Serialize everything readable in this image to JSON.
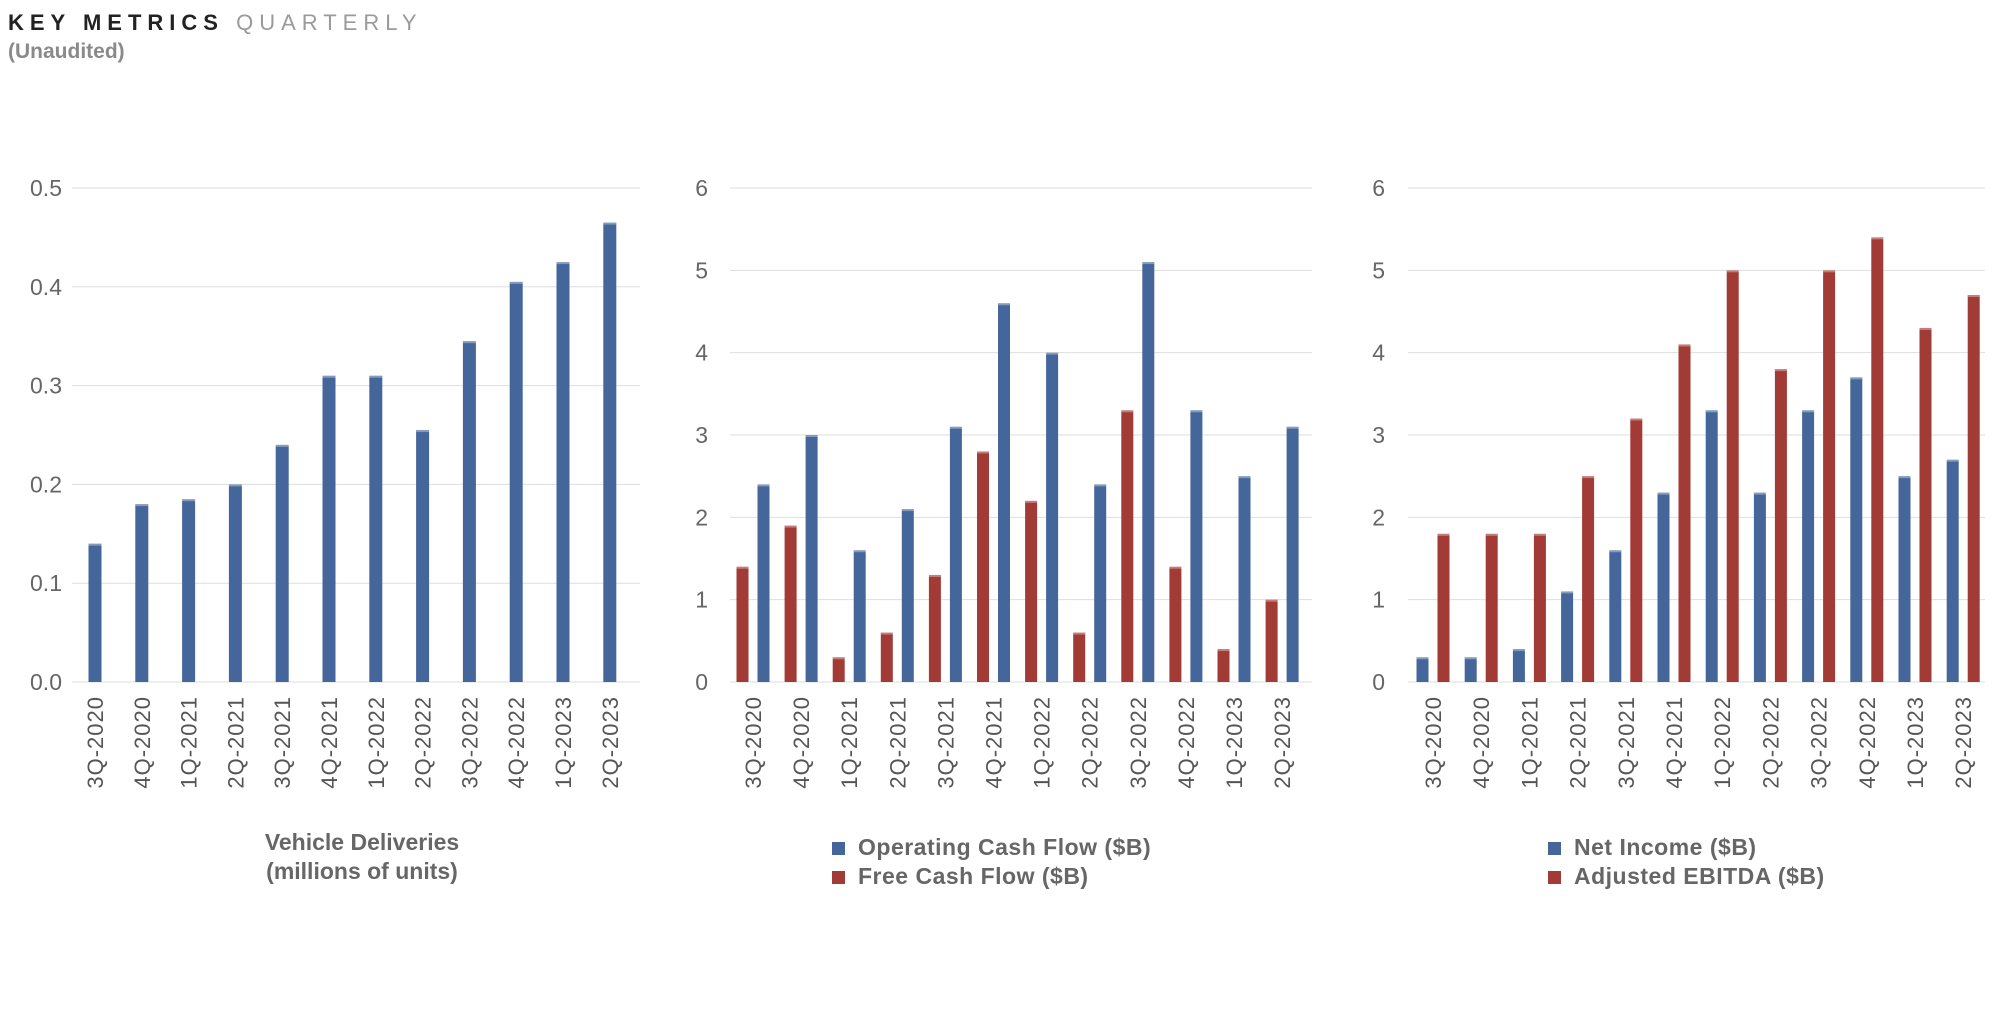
{
  "header": {
    "title_strong": "KEY METRICS",
    "title_light": "QUARTERLY",
    "subtitle": "(Unaudited)"
  },
  "colors": {
    "blue": "#44669a",
    "red": "#a23a35",
    "grid": "#dedede"
  },
  "chart_data": [
    {
      "type": "bar",
      "categories": [
        "3Q-2020",
        "4Q-2020",
        "1Q-2021",
        "2Q-2021",
        "3Q-2021",
        "4Q-2021",
        "1Q-2022",
        "2Q-2022",
        "3Q-2022",
        "4Q-2022",
        "1Q-2023",
        "2Q-2023"
      ],
      "series": [
        {
          "name": "",
          "color": "#44669a",
          "values": [
            0.14,
            0.18,
            0.185,
            0.2,
            0.24,
            0.31,
            0.31,
            0.255,
            0.345,
            0.405,
            0.425,
            0.465
          ]
        }
      ],
      "caption_lines": [
        "Vehicle Deliveries",
        "(millions of units)"
      ],
      "yticks": [
        "0.0",
        "0.1",
        "0.2",
        "0.3",
        "0.4",
        "0.5"
      ],
      "ylim": [
        0,
        0.5
      ],
      "grid": true,
      "legend": "none"
    },
    {
      "type": "bar",
      "categories": [
        "3Q-2020",
        "4Q-2020",
        "1Q-2021",
        "2Q-2021",
        "3Q-2021",
        "4Q-2021",
        "1Q-2022",
        "2Q-2022",
        "3Q-2022",
        "4Q-2022",
        "1Q-2023",
        "2Q-2023"
      ],
      "series": [
        {
          "name": "Free Cash Flow ($B)",
          "color": "#a23a35",
          "values": [
            1.4,
            1.9,
            0.3,
            0.6,
            1.3,
            2.8,
            2.2,
            0.6,
            3.3,
            1.4,
            0.4,
            1.0
          ]
        },
        {
          "name": "Operating Cash Flow ($B)",
          "color": "#44669a",
          "values": [
            2.4,
            3.0,
            1.6,
            2.1,
            3.1,
            4.6,
            4.0,
            2.4,
            5.1,
            3.3,
            2.5,
            3.1
          ]
        }
      ],
      "legend_order": [
        1,
        0
      ],
      "yticks": [
        "0",
        "1",
        "2",
        "3",
        "4",
        "5",
        "6"
      ],
      "ylim": [
        0,
        6
      ],
      "grid": true,
      "legend": "bottom"
    },
    {
      "type": "bar",
      "categories": [
        "3Q-2020",
        "4Q-2020",
        "1Q-2021",
        "2Q-2021",
        "3Q-2021",
        "4Q-2021",
        "1Q-2022",
        "2Q-2022",
        "3Q-2022",
        "4Q-2022",
        "1Q-2023",
        "2Q-2023"
      ],
      "series": [
        {
          "name": "Net Income ($B)",
          "color": "#44669a",
          "values": [
            0.3,
            0.3,
            0.4,
            1.1,
            1.6,
            2.3,
            3.3,
            2.3,
            3.3,
            3.7,
            2.5,
            2.7
          ]
        },
        {
          "name": "Adjusted EBITDA ($B)",
          "color": "#a23a35",
          "values": [
            1.8,
            1.8,
            1.8,
            2.5,
            3.2,
            4.1,
            5.0,
            3.8,
            5.0,
            5.4,
            4.3,
            4.7
          ]
        }
      ],
      "legend_order": [
        0,
        1
      ],
      "yticks": [
        "0",
        "1",
        "2",
        "3",
        "4",
        "5",
        "6"
      ],
      "ylim": [
        0,
        6
      ],
      "grid": true,
      "legend": "bottom"
    }
  ]
}
